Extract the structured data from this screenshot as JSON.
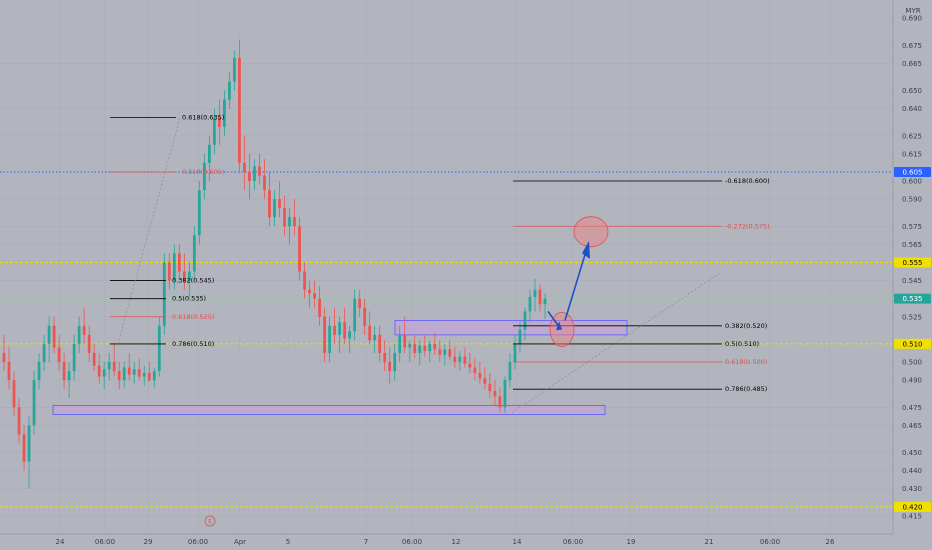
{
  "chart_data": {
    "type": "candlestick",
    "symbol": "MYR",
    "ylim": [
      0.405,
      0.7
    ],
    "y_ticks": [
      0.415,
      0.43,
      0.44,
      0.45,
      0.465,
      0.475,
      0.49,
      0.5,
      0.51,
      0.525,
      0.535,
      0.545,
      0.555,
      0.565,
      0.575,
      0.59,
      0.6,
      0.615,
      0.625,
      0.64,
      0.65,
      0.665,
      0.675,
      0.69
    ],
    "x_ticks": [
      "24",
      "06:00",
      "29",
      "06:00",
      "Apr",
      "5",
      "7",
      "06:00",
      "12",
      "14",
      "06:00",
      "19",
      "21",
      "06:00",
      "26"
    ],
    "price_badges": [
      {
        "label": "0.605",
        "value": 0.605,
        "color": "#2962ff",
        "text_color": "#ffffff"
      },
      {
        "label": "0.555",
        "value": 0.555,
        "color": "#f0e000",
        "text_color": "#000000"
      },
      {
        "label": "0.535",
        "value": 0.535,
        "color": "#26a69a",
        "text_color": "#ffffff"
      },
      {
        "label": "0.510",
        "value": 0.51,
        "color": "#f0e000",
        "text_color": "#000000"
      },
      {
        "label": "0.420",
        "value": 0.42,
        "color": "#f0e000",
        "text_color": "#000000"
      }
    ],
    "horizontal_lines": [
      {
        "value": 0.605,
        "style": "dotted",
        "color": "#2962ff"
      },
      {
        "value": 0.555,
        "style": "dashed",
        "color": "#f0e000"
      },
      {
        "value": 0.51,
        "style": "dashed",
        "color": "#f0e000"
      },
      {
        "value": 0.42,
        "style": "dashed",
        "color": "#f0e000"
      },
      {
        "value": 0.535,
        "style": "solid",
        "color": "#9ad0a0"
      }
    ],
    "fib_left": {
      "levels": [
        {
          "label": "0.618(0.635)",
          "value": 0.635,
          "color": "#000000"
        },
        {
          "label": "0.618(0.605)",
          "value": 0.605,
          "color": "#e05050"
        },
        {
          "label": "0.382(0.545)",
          "value": 0.545,
          "color": "#000000"
        },
        {
          "label": "0.5(0.535)",
          "value": 0.535,
          "color": "#000000"
        },
        {
          "label": "0.618(0.525)",
          "value": 0.525,
          "color": "#e05050"
        },
        {
          "label": "0.786(0.510)",
          "value": 0.51,
          "color": "#000000"
        }
      ]
    },
    "fib_right": {
      "levels": [
        {
          "label": "-0.618(0.600)",
          "value": 0.6,
          "color": "#000000"
        },
        {
          "label": "-0.272(0.575)",
          "value": 0.575,
          "color": "#e05050"
        },
        {
          "label": "0.382(0.520)",
          "value": 0.52,
          "color": "#000000"
        },
        {
          "label": "0.5(0.510)",
          "value": 0.51,
          "color": "#000000"
        },
        {
          "label": "0.618(0.500)",
          "value": 0.5,
          "color": "#e05050"
        },
        {
          "label": "0.786(0.485)",
          "value": 0.485,
          "color": "#000000"
        }
      ]
    },
    "zones": [
      {
        "name": "demand-zone",
        "value_top": 0.476,
        "value_bottom": 0.471,
        "color": "#c8a0e0"
      },
      {
        "name": "right-zone",
        "value_top": 0.523,
        "value_bottom": 0.515,
        "color": "#c8a0e0"
      }
    ],
    "candles": [
      [
        0.505,
        0.515,
        0.495,
        0.5
      ],
      [
        0.5,
        0.508,
        0.485,
        0.49
      ],
      [
        0.49,
        0.495,
        0.47,
        0.475
      ],
      [
        0.475,
        0.48,
        0.455,
        0.46
      ],
      [
        0.46,
        0.465,
        0.44,
        0.445
      ],
      [
        0.445,
        0.47,
        0.43,
        0.465
      ],
      [
        0.465,
        0.495,
        0.46,
        0.49
      ],
      [
        0.49,
        0.505,
        0.485,
        0.5
      ],
      [
        0.5,
        0.515,
        0.495,
        0.51
      ],
      [
        0.51,
        0.525,
        0.5,
        0.52
      ],
      [
        0.52,
        0.525,
        0.505,
        0.508
      ],
      [
        0.508,
        0.515,
        0.495,
        0.5
      ],
      [
        0.5,
        0.505,
        0.485,
        0.49
      ],
      [
        0.49,
        0.5,
        0.48,
        0.495
      ],
      [
        0.495,
        0.515,
        0.49,
        0.51
      ],
      [
        0.51,
        0.525,
        0.505,
        0.52
      ],
      [
        0.52,
        0.53,
        0.51,
        0.515
      ],
      [
        0.515,
        0.52,
        0.5,
        0.505
      ],
      [
        0.505,
        0.51,
        0.495,
        0.498
      ],
      [
        0.498,
        0.505,
        0.488,
        0.492
      ],
      [
        0.492,
        0.5,
        0.485,
        0.496
      ],
      [
        0.496,
        0.505,
        0.49,
        0.5
      ],
      [
        0.5,
        0.51,
        0.492,
        0.495
      ],
      [
        0.495,
        0.5,
        0.485,
        0.49
      ],
      [
        0.49,
        0.5,
        0.486,
        0.497
      ],
      [
        0.497,
        0.505,
        0.49,
        0.493
      ],
      [
        0.493,
        0.5,
        0.488,
        0.496
      ],
      [
        0.496,
        0.502,
        0.49,
        0.492
      ],
      [
        0.492,
        0.498,
        0.487,
        0.494
      ],
      [
        0.494,
        0.5,
        0.489,
        0.49
      ],
      [
        0.49,
        0.497,
        0.486,
        0.495
      ],
      [
        0.495,
        0.525,
        0.492,
        0.52
      ],
      [
        0.52,
        0.56,
        0.515,
        0.555
      ],
      [
        0.555,
        0.56,
        0.54,
        0.545
      ],
      [
        0.545,
        0.565,
        0.54,
        0.56
      ],
      [
        0.56,
        0.565,
        0.545,
        0.55
      ],
      [
        0.55,
        0.56,
        0.54,
        0.545
      ],
      [
        0.545,
        0.555,
        0.535,
        0.55
      ],
      [
        0.55,
        0.575,
        0.545,
        0.57
      ],
      [
        0.57,
        0.6,
        0.565,
        0.595
      ],
      [
        0.595,
        0.615,
        0.59,
        0.61
      ],
      [
        0.61,
        0.625,
        0.6,
        0.62
      ],
      [
        0.62,
        0.64,
        0.615,
        0.635
      ],
      [
        0.635,
        0.645,
        0.62,
        0.63
      ],
      [
        0.63,
        0.65,
        0.625,
        0.645
      ],
      [
        0.645,
        0.66,
        0.64,
        0.655
      ],
      [
        0.655,
        0.672,
        0.65,
        0.668
      ],
      [
        0.668,
        0.678,
        0.605,
        0.61
      ],
      [
        0.61,
        0.625,
        0.595,
        0.605
      ],
      [
        0.605,
        0.615,
        0.59,
        0.6
      ],
      [
        0.6,
        0.612,
        0.595,
        0.608
      ],
      [
        0.608,
        0.615,
        0.598,
        0.603
      ],
      [
        0.603,
        0.612,
        0.59,
        0.595
      ],
      [
        0.595,
        0.605,
        0.575,
        0.58
      ],
      [
        0.58,
        0.595,
        0.575,
        0.59
      ],
      [
        0.59,
        0.6,
        0.58,
        0.585
      ],
      [
        0.585,
        0.592,
        0.57,
        0.575
      ],
      [
        0.575,
        0.585,
        0.565,
        0.58
      ],
      [
        0.58,
        0.59,
        0.57,
        0.575
      ],
      [
        0.575,
        0.58,
        0.545,
        0.55
      ],
      [
        0.55,
        0.555,
        0.535,
        0.54
      ],
      [
        0.54,
        0.545,
        0.53,
        0.538
      ],
      [
        0.538,
        0.545,
        0.53,
        0.535
      ],
      [
        0.535,
        0.542,
        0.52,
        0.525
      ],
      [
        0.525,
        0.53,
        0.5,
        0.505
      ],
      [
        0.505,
        0.525,
        0.5,
        0.52
      ],
      [
        0.52,
        0.53,
        0.51,
        0.515
      ],
      [
        0.515,
        0.525,
        0.505,
        0.522
      ],
      [
        0.522,
        0.53,
        0.51,
        0.513
      ],
      [
        0.513,
        0.52,
        0.505,
        0.517
      ],
      [
        0.517,
        0.54,
        0.512,
        0.535
      ],
      [
        0.535,
        0.54,
        0.525,
        0.53
      ],
      [
        0.53,
        0.535,
        0.515,
        0.52
      ],
      [
        0.52,
        0.528,
        0.51,
        0.512
      ],
      [
        0.512,
        0.52,
        0.505,
        0.515
      ],
      [
        0.515,
        0.52,
        0.5,
        0.505
      ],
      [
        0.505,
        0.512,
        0.495,
        0.5
      ],
      [
        0.5,
        0.508,
        0.488,
        0.495
      ],
      [
        0.495,
        0.51,
        0.49,
        0.505
      ],
      [
        0.505,
        0.52,
        0.5,
        0.515
      ],
      [
        0.515,
        0.525,
        0.505,
        0.508
      ],
      [
        0.508,
        0.512,
        0.5,
        0.51
      ],
      [
        0.51,
        0.515,
        0.502,
        0.505
      ],
      [
        0.505,
        0.512,
        0.498,
        0.509
      ],
      [
        0.509,
        0.515,
        0.503,
        0.506
      ],
      [
        0.506,
        0.512,
        0.5,
        0.51
      ],
      [
        0.51,
        0.516,
        0.504,
        0.507
      ],
      [
        0.507,
        0.512,
        0.5,
        0.504
      ],
      [
        0.504,
        0.51,
        0.498,
        0.507
      ],
      [
        0.507,
        0.512,
        0.501,
        0.503
      ],
      [
        0.503,
        0.508,
        0.497,
        0.5
      ],
      [
        0.5,
        0.506,
        0.495,
        0.503
      ],
      [
        0.503,
        0.508,
        0.497,
        0.499
      ],
      [
        0.499,
        0.505,
        0.494,
        0.497
      ],
      [
        0.497,
        0.502,
        0.49,
        0.494
      ],
      [
        0.494,
        0.5,
        0.488,
        0.491
      ],
      [
        0.491,
        0.497,
        0.485,
        0.488
      ],
      [
        0.488,
        0.494,
        0.48,
        0.484
      ],
      [
        0.484,
        0.49,
        0.476,
        0.481
      ],
      [
        0.481,
        0.486,
        0.472,
        0.475
      ],
      [
        0.475,
        0.492,
        0.472,
        0.49
      ],
      [
        0.49,
        0.505,
        0.486,
        0.5
      ],
      [
        0.5,
        0.515,
        0.496,
        0.51
      ],
      [
        0.51,
        0.522,
        0.505,
        0.518
      ],
      [
        0.518,
        0.53,
        0.512,
        0.528
      ],
      [
        0.528,
        0.54,
        0.522,
        0.536
      ],
      [
        0.536,
        0.546,
        0.528,
        0.54
      ],
      [
        0.54,
        0.543,
        0.528,
        0.532
      ],
      [
        0.532,
        0.538,
        0.524,
        0.535
      ]
    ]
  }
}
